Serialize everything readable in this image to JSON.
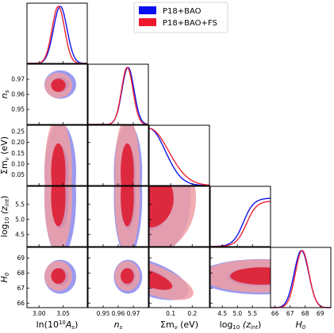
{
  "chart_data": {
    "type": "corner",
    "parameters": [
      {
        "key": "lnAs",
        "label": "ln(10",
        "label_sup": "10",
        "label_tail": "A",
        "label_sub": "s",
        "label_close": ")",
        "range": [
          2.975,
          3.1
        ],
        "ticks": [
          3.0,
          3.05
        ],
        "tick_labels": [
          "3.00",
          "3.05"
        ]
      },
      {
        "key": "ns",
        "label": "n",
        "label_sub": "s",
        "range": [
          0.94,
          0.98
        ],
        "ticks": [
          0.95,
          0.96,
          0.97
        ],
        "tick_labels": [
          "0.95",
          "0.96",
          "0.97"
        ]
      },
      {
        "key": "mnu",
        "label": "Σm",
        "label_sub": "ν",
        "label_tail": " (eV)",
        "range": [
          0.0,
          0.28
        ],
        "ticks": [
          0.1,
          0.2
        ],
        "tick_labels": [
          "0.1",
          "0.2"
        ]
      },
      {
        "key": "logzint",
        "label": "log",
        "label_sub": "10",
        "label_tail": " (z",
        "label_sub2": "int",
        "label_close": ")",
        "range": [
          4.1,
          6.1
        ],
        "ticks": [
          4.5,
          5.0,
          5.5
        ],
        "tick_labels": [
          "4.5",
          "5.0",
          "5.5"
        ]
      },
      {
        "key": "H0",
        "label": "H",
        "label_sub": "0",
        "range": [
          65.7,
          69.7
        ],
        "ticks": [
          66,
          67,
          68,
          69
        ],
        "tick_labels": [
          "66",
          "67",
          "68",
          "69"
        ]
      }
    ],
    "y_axis_ticks": {
      "ns": {
        "ticks": [
          0.95,
          0.96,
          0.97
        ],
        "tick_labels": [
          "0.95",
          "0.96",
          "0.97"
        ]
      },
      "mnu": {
        "ticks": [
          0.05,
          0.1,
          0.15,
          0.2,
          0.25
        ],
        "tick_labels": [
          "0.05",
          "0.10",
          "0.15",
          "0.20",
          "0.25"
        ]
      },
      "logzint": {
        "ticks": [
          4.5,
          5.0,
          5.5
        ],
        "tick_labels": [
          "4.5",
          "5.0",
          "5.5"
        ]
      },
      "H0": {
        "ticks": [
          66,
          67,
          68,
          69
        ],
        "tick_labels": [
          "66",
          "67",
          "68",
          "69"
        ]
      }
    },
    "series": [
      {
        "name": "P18+BAO",
        "color": "#0a10f0",
        "mean": {
          "lnAs": 3.044,
          "ns": 0.9665,
          "mnu": 0.0,
          "H0": 67.75
        },
        "sigma": {
          "lnAs": 0.014,
          "ns": 0.004,
          "mnu": 0.075,
          "H0": 0.48
        },
        "logzint_cdf_plateau": 0.85,
        "logzint_mid": 5.2
      },
      {
        "name": "P18+BAO+FS",
        "color": "#f0192b",
        "mean": {
          "lnAs": 3.04,
          "ns": 0.966,
          "mnu": 0.0,
          "H0": 67.8
        },
        "sigma": {
          "lnAs": 0.013,
          "ns": 0.0038,
          "mnu": 0.09,
          "H0": 0.45
        },
        "logzint_cdf_plateau": 0.8,
        "logzint_mid": 5.3
      }
    ],
    "legend_position": "top-right"
  },
  "colors": {
    "blue_fill_outer": "#9a9af0",
    "blue_fill_inner": "#3b3bf5",
    "red_fill_outer": "#ef9fa3",
    "red_fill_inner": "#de1e32",
    "blue_line": "#1010f0",
    "red_line": "#ee2233"
  }
}
